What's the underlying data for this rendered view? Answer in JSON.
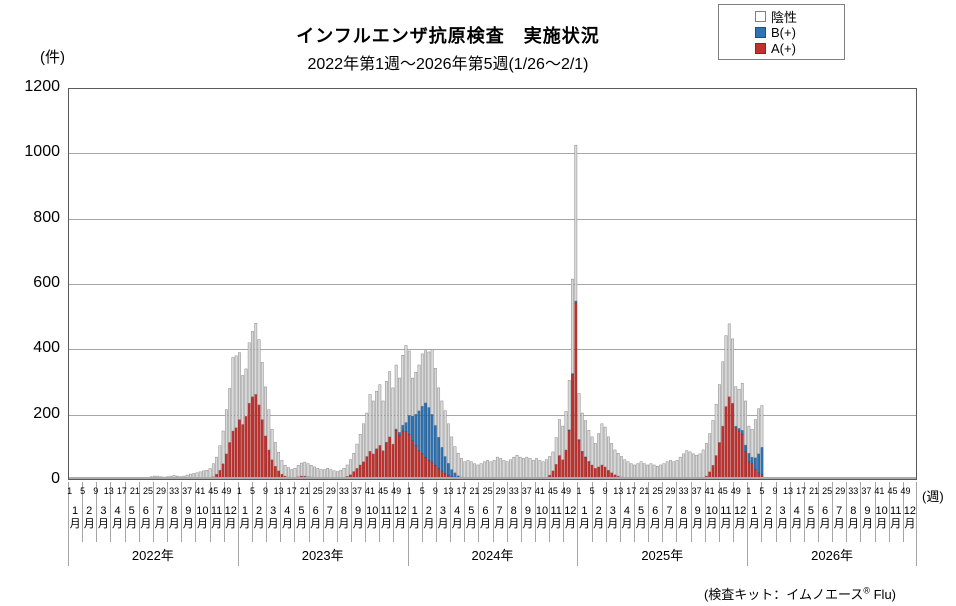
{
  "header": {
    "title": "インフルエンザ抗原検査　実施状況",
    "subtitle": "2022年第1週～2026年第5週(1/26～2/1)"
  },
  "legend": {
    "items": [
      {
        "label": "陰性",
        "color": "#FFFFFF",
        "border": "#7f7f7f"
      },
      {
        "label": "B(+)",
        "color": "#2E74B5",
        "border": "#1F4E79"
      },
      {
        "label": "A(+)",
        "color": "#C0322F",
        "border": "#8E2422"
      }
    ]
  },
  "axes": {
    "y_unit": "(件)",
    "x_unit": "(週)",
    "y_ticks": [
      0,
      200,
      400,
      600,
      800,
      1000,
      1200
    ],
    "week_tick_labels": [
      1,
      5,
      9,
      13,
      17,
      21,
      25,
      29,
      33,
      37,
      41,
      45,
      49
    ],
    "month_labels": [
      "1月",
      "2月",
      "3月",
      "4月",
      "5月",
      "6月",
      "7月",
      "8月",
      "9月",
      "10月",
      "11月",
      "12月"
    ],
    "year_labels": [
      "2022年",
      "2023年",
      "2024年",
      "2025年",
      "2026年"
    ]
  },
  "footer": {
    "prefix": "(検査キット：イムノエース",
    "reg": "®",
    "suffix": " Flu)"
  },
  "chart_data": {
    "type": "bar",
    "stacked": true,
    "title": "インフルエンザ抗原検査　実施状況",
    "subtitle": "2022年第1週～2026年第5週(1/26～2/1)",
    "xlabel": "週 (2022年第1週～2026年第5週, 週番号×月×年)",
    "ylabel": "件",
    "ylim": [
      0,
      1200
    ],
    "grid": "horizontal",
    "legend_position": "top-right",
    "weeks_per_year": 52,
    "displayed_years": 5,
    "n_weeks_with_data": 213,
    "note": "values are stacked counts per week; stack order bottom-to-top: A(+), B(+), 陰性",
    "series": [
      {
        "name": "A(+)",
        "color": "#C0322F",
        "edge": "#8E2422",
        "values": [
          1,
          1,
          0,
          0,
          0,
          0,
          0,
          0,
          0,
          0,
          0,
          0,
          0,
          0,
          0,
          0,
          0,
          0,
          0,
          0,
          0,
          0,
          0,
          0,
          0,
          0,
          0,
          0,
          0,
          0,
          0,
          0,
          0,
          0,
          0,
          0,
          0,
          0,
          1,
          1,
          2,
          2,
          3,
          5,
          10,
          18,
          30,
          50,
          80,
          115,
          150,
          160,
          185,
          170,
          195,
          235,
          255,
          262,
          230,
          185,
          135,
          92,
          62,
          42,
          28,
          18,
          12,
          9,
          7,
          8,
          10,
          12,
          12,
          10,
          9,
          7,
          6,
          5,
          5,
          6,
          5,
          4,
          4,
          5,
          7,
          11,
          16,
          26,
          36,
          46,
          56,
          72,
          88,
          80,
          96,
          106,
          90,
          116,
          132,
          110,
          152,
          136,
          150,
          148,
          140,
          120,
          105,
          90,
          80,
          70,
          60,
          55,
          45,
          35,
          28,
          20,
          15,
          10,
          8,
          5,
          4,
          3,
          3,
          2,
          2,
          1,
          1,
          1,
          1,
          1,
          1,
          2,
          2,
          1,
          1,
          1,
          2,
          2,
          2,
          2,
          2,
          2,
          2,
          3,
          3,
          4,
          6,
          15,
          28,
          48,
          75,
          62,
          92,
          152,
          322,
          542,
          122,
          86,
          70,
          56,
          46,
          36,
          40,
          46,
          40,
          30,
          22,
          16,
          12,
          9,
          7,
          5,
          4,
          3,
          3,
          3,
          2,
          2,
          2,
          2,
          1,
          1,
          1,
          2,
          2,
          2,
          2,
          3,
          4,
          5,
          5,
          4,
          4,
          5,
          7,
          12,
          25,
          45,
          75,
          115,
          165,
          225,
          255,
          235,
          160,
          150,
          140,
          87,
          56,
          50,
          32,
          22,
          16
        ]
      },
      {
        "name": "B(+)",
        "color": "#2E74B5",
        "edge": "#1F4E79",
        "values": [
          0,
          0,
          0,
          0,
          0,
          0,
          0,
          0,
          0,
          0,
          0,
          0,
          0,
          0,
          0,
          0,
          0,
          0,
          0,
          0,
          0,
          0,
          0,
          0,
          0,
          0,
          0,
          0,
          0,
          0,
          0,
          0,
          0,
          0,
          0,
          0,
          0,
          0,
          0,
          0,
          0,
          0,
          0,
          0,
          0,
          0,
          0,
          0,
          0,
          0,
          0,
          0,
          0,
          0,
          0,
          0,
          0,
          0,
          0,
          0,
          0,
          0,
          0,
          0,
          0,
          0,
          0,
          0,
          0,
          0,
          0,
          0,
          0,
          0,
          0,
          0,
          0,
          0,
          0,
          0,
          0,
          0,
          0,
          0,
          0,
          0,
          0,
          0,
          0,
          0,
          0,
          0,
          0,
          0,
          0,
          0,
          0,
          0,
          0,
          0,
          4,
          10,
          18,
          28,
          58,
          76,
          96,
          122,
          146,
          166,
          162,
          146,
          122,
          96,
          72,
          52,
          36,
          22,
          14,
          8,
          5,
          3,
          2,
          2,
          1,
          1,
          0,
          0,
          0,
          0,
          0,
          0,
          0,
          0,
          0,
          0,
          0,
          0,
          0,
          0,
          0,
          0,
          0,
          0,
          0,
          0,
          0,
          0,
          0,
          0,
          0,
          0,
          0,
          2,
          4,
          6,
          2,
          2,
          1,
          1,
          0,
          0,
          0,
          0,
          0,
          0,
          0,
          0,
          0,
          0,
          0,
          0,
          0,
          0,
          0,
          0,
          0,
          0,
          0,
          0,
          0,
          0,
          0,
          0,
          0,
          0,
          0,
          0,
          0,
          0,
          0,
          0,
          0,
          0,
          0,
          0,
          0,
          0,
          0,
          0,
          0,
          0,
          0,
          0,
          5,
          8,
          12,
          20,
          26,
          20,
          36,
          58,
          84
        ]
      },
      {
        "name": "陰性",
        "color": "#D9D9D9",
        "edge": "#808080",
        "values": [
          7,
          5,
          5,
          5,
          4,
          4,
          3,
          3,
          3,
          3,
          4,
          4,
          3,
          4,
          5,
          4,
          5,
          6,
          8,
          8,
          7,
          6,
          5,
          6,
          8,
          10,
          12,
          12,
          10,
          9,
          10,
          12,
          14,
          12,
          10,
          12,
          15,
          18,
          19,
          21,
          23,
          26,
          27,
          30,
          40,
          52,
          75,
          100,
          135,
          165,
          225,
          220,
          205,
          150,
          145,
          185,
          200,
          218,
          200,
          175,
          150,
          123,
          93,
          73,
          57,
          42,
          33,
          29,
          25,
          28,
          35,
          40,
          43,
          40,
          36,
          33,
          30,
          27,
          27,
          30,
          27,
          24,
          22,
          25,
          29,
          35,
          46,
          56,
          74,
          94,
          116,
          133,
          174,
          162,
          176,
          186,
          152,
          186,
          200,
          172,
          196,
          166,
          214,
          236,
          197,
          116,
          129,
          140,
          160,
          160,
          170,
          199,
          175,
          151,
          142,
          140,
          121,
          100,
          80,
          69,
          57,
          50,
          55,
          52,
          47,
          44,
          49,
          55,
          59,
          55,
          59,
          68,
          64,
          59,
          55,
          61,
          68,
          74,
          68,
          64,
          68,
          64,
          58,
          63,
          57,
          52,
          56,
          57,
          58,
          82,
          110,
          103,
          118,
          151,
          289,
          477,
          141,
          117,
          111,
          95,
          86,
          76,
          102,
          126,
          122,
          102,
          90,
          76,
          70,
          63,
          55,
          51,
          46,
          43,
          47,
          53,
          48,
          44,
          48,
          44,
          41,
          45,
          49,
          54,
          58,
          54,
          58,
          67,
          76,
          85,
          81,
          76,
          72,
          75,
          85,
          100,
          117,
          137,
          157,
          177,
          197,
          217,
          223,
          197,
          121,
          120,
          144,
          135,
          83,
          85,
          117,
          138,
          128
        ]
      }
    ]
  }
}
